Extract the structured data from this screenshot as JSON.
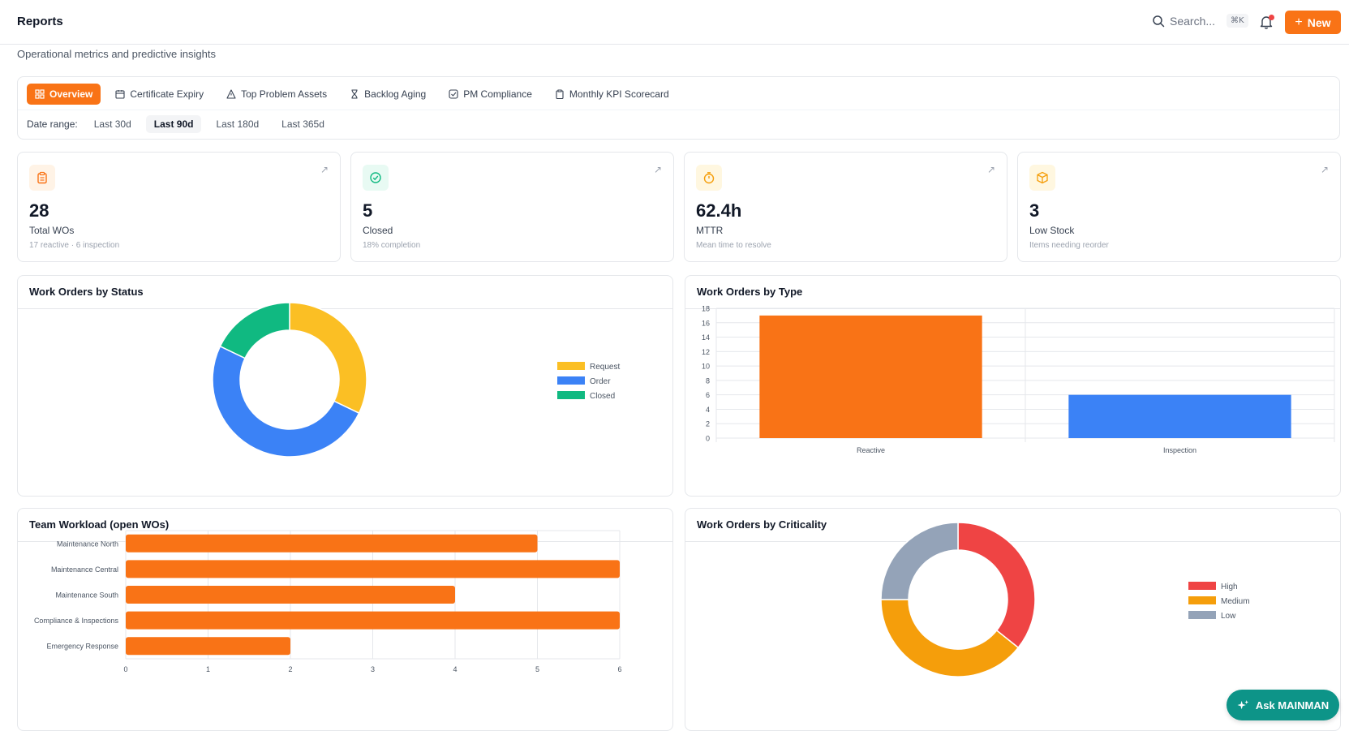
{
  "header": {
    "title": "Reports",
    "search_placeholder": "Search...",
    "search_shortcut": "⌘K",
    "new_label": "New"
  },
  "subtitle": "Operational metrics and predictive insights",
  "tabs": [
    {
      "label": "Overview",
      "icon": "grid-icon",
      "active": true
    },
    {
      "label": "Certificate Expiry",
      "icon": "calendar-icon"
    },
    {
      "label": "Top Problem Assets",
      "icon": "warning-icon"
    },
    {
      "label": "Backlog Aging",
      "icon": "hourglass-icon"
    },
    {
      "label": "PM Compliance",
      "icon": "check-square-icon"
    },
    {
      "label": "Monthly KPI Scorecard",
      "icon": "clipboard-icon"
    }
  ],
  "date_range": {
    "label": "Date range:",
    "options": [
      "Last 30d",
      "Last 90d",
      "Last 180d",
      "Last 365d"
    ],
    "selected": "Last 90d"
  },
  "kpis": [
    {
      "value": "28",
      "label": "Total WOs",
      "sub": "17 reactive · 6 inspection",
      "icon": "clipboard-icon",
      "color": "#f97316",
      "bg": "#fff3e6"
    },
    {
      "value": "5",
      "label": "Closed",
      "sub": "18% completion",
      "icon": "check-circle-icon",
      "color": "#10b981",
      "bg": "#e8faf3"
    },
    {
      "value": "62.4h",
      "label": "MTTR",
      "sub": "Mean time to resolve",
      "icon": "stopwatch-icon",
      "color": "#f59e0b",
      "bg": "#fff7e0"
    },
    {
      "value": "3",
      "label": "Low Stock",
      "sub": "Items needing reorder",
      "icon": "package-icon",
      "color": "#f59e0b",
      "bg": "#fff7e0"
    }
  ],
  "panels": {
    "status": {
      "title": "Work Orders by Status"
    },
    "type": {
      "title": "Work Orders by Type"
    },
    "team": {
      "title": "Team Workload (open WOs)"
    },
    "criticality": {
      "title": "Work Orders by Criticality"
    }
  },
  "ask_button": "Ask MAINMAN",
  "chart_data": [
    {
      "type": "pie",
      "title": "Work Orders by Status",
      "categories": [
        "Request",
        "Order",
        "Closed"
      ],
      "values": [
        9,
        14,
        5
      ],
      "colors": [
        "#fbbf24",
        "#3b82f6",
        "#10b981"
      ],
      "legend": "right"
    },
    {
      "type": "bar",
      "title": "Work Orders by Type",
      "categories": [
        "Reactive",
        "Inspection"
      ],
      "values": [
        17,
        6
      ],
      "colors": [
        "#f97316",
        "#3b82f6"
      ],
      "ylim": [
        0,
        18
      ],
      "yticks": [
        0,
        2,
        4,
        6,
        8,
        10,
        12,
        14,
        16,
        18
      ],
      "grid": true
    },
    {
      "type": "bar",
      "orientation": "horizontal",
      "title": "Team Workload (open WOs)",
      "categories": [
        "Maintenance North",
        "Maintenance Central",
        "Maintenance South",
        "Compliance & Inspections",
        "Emergency Response"
      ],
      "values": [
        5,
        6,
        4,
        6,
        2
      ],
      "color": "#f97316",
      "xlim": [
        0,
        6
      ],
      "xticks": [
        0,
        1,
        2,
        3,
        4,
        5,
        6
      ],
      "grid": true
    },
    {
      "type": "pie",
      "title": "Work Orders by Criticality",
      "categories": [
        "High",
        "Medium",
        "Low"
      ],
      "values": [
        10,
        11,
        7
      ],
      "colors": [
        "#ef4444",
        "#f59e0b",
        "#94a3b8"
      ],
      "legend": "right"
    }
  ]
}
